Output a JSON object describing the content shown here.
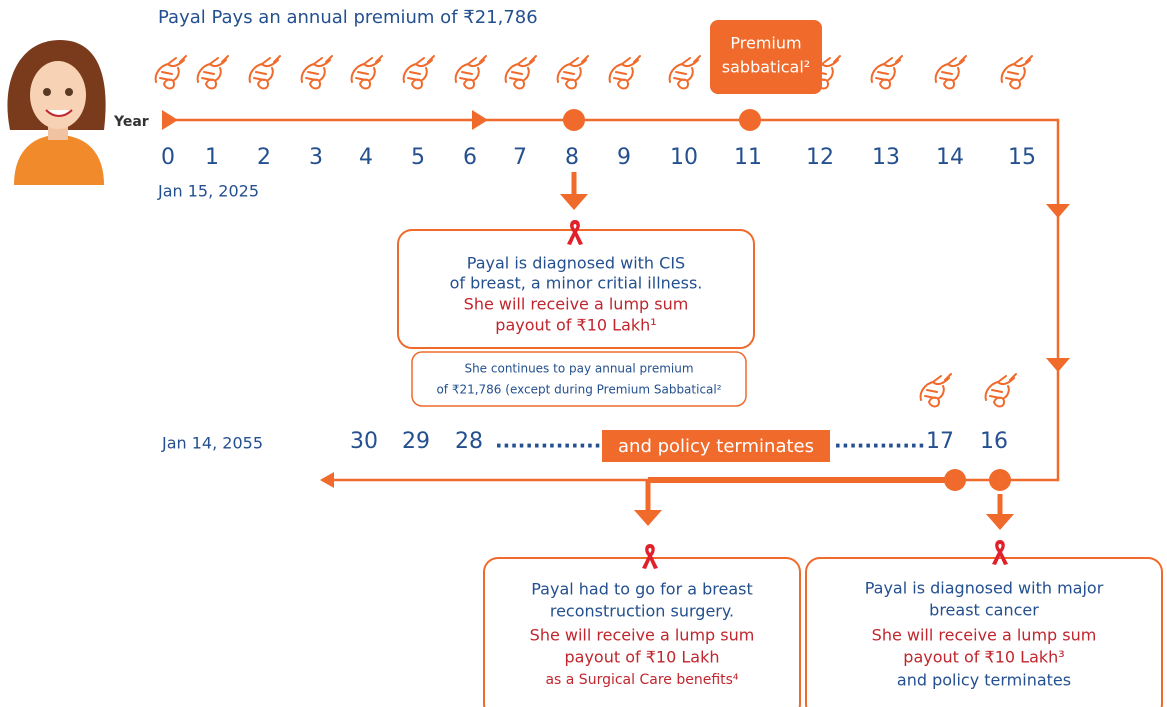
{
  "header": {
    "title": "Payal Pays an annual premium of ₹21,786"
  },
  "timeline": {
    "year_label": "Year",
    "years": [
      "0",
      "1",
      "2",
      "3",
      "4",
      "5",
      "6",
      "7",
      "8",
      "9",
      "10",
      "11",
      "12",
      "13",
      "14",
      "15"
    ],
    "start_date": "Jan 15, 2025",
    "sabbatical_badge": [
      "Premium",
      "sabbatical²"
    ],
    "end_date": "Jan 14, 2055",
    "bottom_years_left": [
      "30",
      "29",
      "28"
    ],
    "dots_left": "................",
    "terminates_badge": "and policy terminates",
    "dots_right": "............",
    "bottom_years_right": [
      "17",
      "16"
    ]
  },
  "events": [
    {
      "lines": [
        "Payal is diagnosed with CIS",
        "of breast, a minor critial illness."
      ],
      "payout": [
        "She will receive a lump sum",
        "payout of  ₹10 Lakh¹"
      ],
      "note": [
        "She continues to pay annual premium",
        "of ₹21,786 (except during Premium Sabbatical²"
      ]
    },
    {
      "lines": [
        "Payal had to go for a breast",
        "reconstruction surgery."
      ],
      "payout": [
        "She will receive a lump sum",
        "payout of  ₹10 Lakh",
        "as a Surgical Care benefits⁴"
      ]
    },
    {
      "lines": [
        "Payal is diagnosed with major",
        "breast cancer"
      ],
      "payout": [
        "She will receive a lump sum",
        "payout of  ₹10 Lakh³",
        "and policy terminates"
      ]
    }
  ]
}
